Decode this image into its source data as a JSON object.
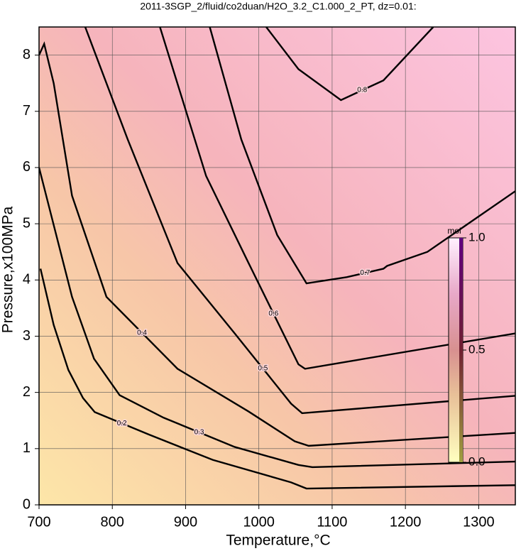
{
  "chart_data": {
    "type": "contour",
    "title": "2011-3SGP_2/fluid/co2duan/H2O_3.2_C1.000_2_PT, dz=0.01:",
    "xlabel": "Temperature,°C",
    "ylabel": "Pressure,x100MPa",
    "xlim": [
      700,
      1350
    ],
    "ylim": [
      0,
      8.5
    ],
    "xticks": [
      700,
      800,
      900,
      1000,
      1100,
      1200,
      1300
    ],
    "yticks": [
      0,
      1,
      2,
      3,
      4,
      5,
      6,
      7,
      8
    ],
    "grid": true,
    "color": "#000000",
    "contours": [
      {
        "level": 0.2,
        "x": [
          702,
          720,
          740,
          760,
          776,
          850,
          937,
          1044,
          1065,
          1350
        ],
        "y": [
          4.2,
          3.2,
          2.4,
          1.9,
          1.65,
          1.25,
          0.8,
          0.4,
          0.29,
          0.35
        ]
      },
      {
        "level": 0.3,
        "x": [
          700,
          745,
          775,
          810,
          870,
          967,
          1054,
          1073,
          1350
        ],
        "y": [
          6.0,
          3.7,
          2.6,
          1.95,
          1.55,
          1.03,
          0.71,
          0.67,
          0.77
        ]
      },
      {
        "level": 0.4,
        "x": [
          700,
          707,
          720,
          745,
          792,
          889,
          986,
          1049,
          1068,
          1350
        ],
        "y": [
          8.0,
          8.2,
          7.5,
          5.5,
          3.7,
          2.42,
          1.66,
          1.13,
          1.05,
          1.28
        ]
      },
      {
        "level": 0.5,
        "x": [
          763,
          821,
          889,
          967,
          1044,
          1059,
          1350
        ],
        "y": [
          8.5,
          6.5,
          4.3,
          3.05,
          1.8,
          1.63,
          1.94
        ]
      },
      {
        "level": 0.6,
        "x": [
          865,
          928,
          986,
          1054,
          1063,
          1350
        ],
        "y": [
          8.5,
          5.85,
          4.3,
          2.5,
          2.42,
          3.05
        ]
      },
      {
        "level": 0.7,
        "x": [
          933,
          976,
          1025,
          1065,
          1120,
          1170,
          1175,
          1230,
          1350
        ],
        "y": [
          8.5,
          6.5,
          4.8,
          3.94,
          4.05,
          4.2,
          4.25,
          4.5,
          5.58
        ]
      },
      {
        "level": 0.8,
        "x": [
          1010,
          1054,
          1112,
          1170,
          1238
        ],
        "y": [
          8.5,
          7.75,
          7.2,
          7.55,
          8.5
        ]
      }
    ],
    "colorbar": {
      "label": "mol",
      "lim": [
        0,
        1
      ],
      "ticks": [
        {
          "value": 0,
          "label": "0.0"
        },
        {
          "value": 0.5,
          "label": "0.5"
        },
        {
          "value": 1,
          "label": "1.0"
        }
      ]
    }
  }
}
